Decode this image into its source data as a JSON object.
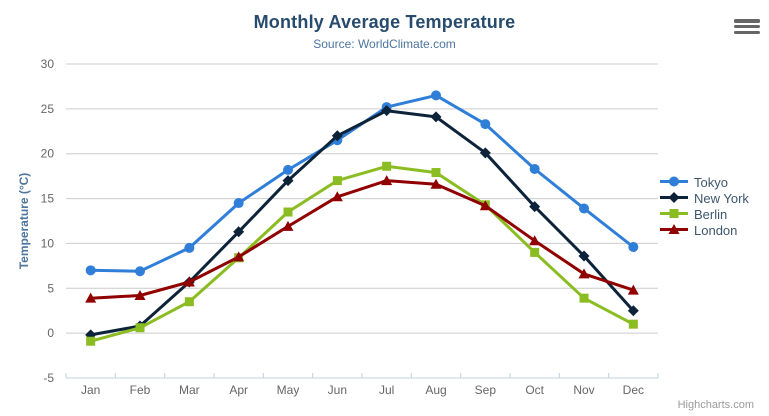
{
  "chart_data": {
    "type": "line",
    "title": "Monthly Average Temperature",
    "subtitle": "Source: WorldClimate.com",
    "xlabel": "",
    "ylabel": "Temperature (°C)",
    "categories": [
      "Jan",
      "Feb",
      "Mar",
      "Apr",
      "May",
      "Jun",
      "Jul",
      "Aug",
      "Sep",
      "Oct",
      "Nov",
      "Dec"
    ],
    "ylim": [
      -5,
      30
    ],
    "yticks": [
      -5,
      0,
      5,
      10,
      15,
      20,
      25,
      30
    ],
    "grid": true,
    "legend_position": "right",
    "series": [
      {
        "name": "Tokyo",
        "color": "#2f7ed8",
        "marker": "circle",
        "values": [
          7.0,
          6.9,
          9.5,
          14.5,
          18.2,
          21.5,
          25.2,
          26.5,
          23.3,
          18.3,
          13.9,
          9.6
        ]
      },
      {
        "name": "New York",
        "color": "#0d233a",
        "marker": "diamond",
        "values": [
          -0.2,
          0.8,
          5.7,
          11.3,
          17.0,
          22.0,
          24.8,
          24.1,
          20.1,
          14.1,
          8.6,
          2.5
        ]
      },
      {
        "name": "Berlin",
        "color": "#8bbc21",
        "marker": "square",
        "values": [
          -0.9,
          0.6,
          3.5,
          8.4,
          13.5,
          17.0,
          18.6,
          17.9,
          14.3,
          9.0,
          3.9,
          1.0
        ]
      },
      {
        "name": "London",
        "color": "#910000",
        "marker": "triangle",
        "values": [
          3.9,
          4.2,
          5.7,
          8.5,
          11.9,
          15.2,
          17.0,
          16.6,
          14.2,
          10.3,
          6.6,
          4.8
        ]
      }
    ],
    "credit": "Highcharts.com",
    "colors": {
      "title": "#274b6d",
      "subtitle": "#4d759e",
      "axis_labels": "#666666",
      "gridline": "#CCCCCC",
      "axis_line": "#C0D0E0",
      "legend_text": "#3E576F",
      "credit_text": "#999999"
    }
  }
}
